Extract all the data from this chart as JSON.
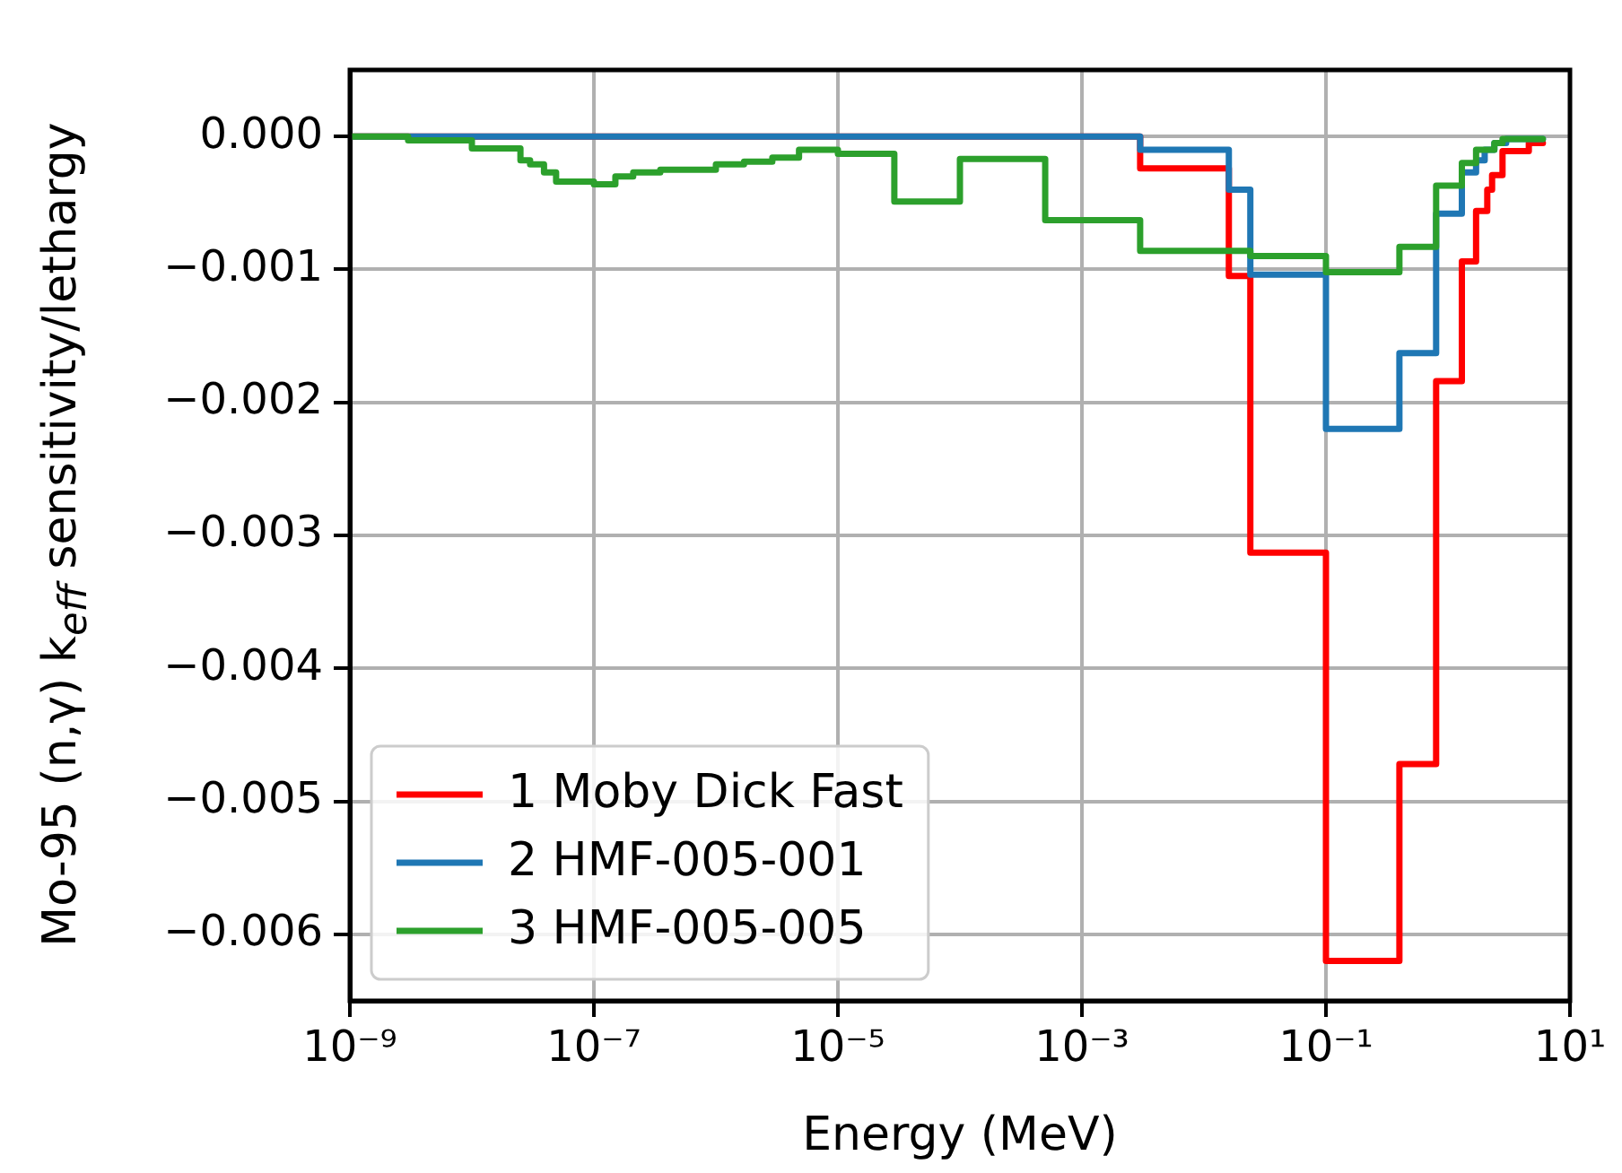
{
  "chart_data": {
    "type": "step",
    "xlabel": "Energy (MeV)",
    "ylabel": "Mo-95 (n,γ) k$_{eff}$ sensitivity/lethargy",
    "log": "x",
    "grid": true,
    "legend": "bottom left",
    "xlim": [
      1e-09,
      10
    ],
    "xticks": [
      {
        "value": 1e-09,
        "label": "10⁻⁹"
      },
      {
        "value": 1e-07,
        "label": "10⁻⁷"
      },
      {
        "value": 1e-05,
        "label": "10⁻⁵"
      },
      {
        "value": 0.001,
        "label": "10⁻³"
      },
      {
        "value": 0.1,
        "label": "10⁻¹"
      },
      {
        "value": 10,
        "label": "10¹"
      }
    ],
    "ylim": [
      -0.0065,
      0.0005
    ],
    "yticks": [
      {
        "value": 0,
        "label": "0.000"
      },
      {
        "value": -0.001,
        "label": "−0.001"
      },
      {
        "value": -0.002,
        "label": "−0.002"
      },
      {
        "value": -0.003,
        "label": "−0.003"
      },
      {
        "value": -0.004,
        "label": "−0.004"
      },
      {
        "value": -0.005,
        "label": "−0.005"
      },
      {
        "value": -0.006,
        "label": "−0.006"
      }
    ],
    "series": [
      {
        "name": "1 Moby Dick Fast",
        "color": "#ff0000",
        "x": [
          1e-09,
          0.003,
          0.016,
          0.024,
          0.1,
          0.4,
          0.8,
          1.3,
          1.7,
          2.1,
          2.3,
          2.8,
          4.6,
          6
        ],
        "values": [
          0,
          -0.00024,
          -0.00105,
          -0.00313,
          -0.0062,
          -0.00472,
          -0.00184,
          -0.00094,
          -0.00056,
          -0.0004,
          -0.00029,
          -0.00011,
          -5e-05,
          -5e-05
        ]
      },
      {
        "name": "2 HMF-005-001",
        "color": "#1f77b4",
        "x": [
          1e-09,
          0.003,
          0.016,
          0.024,
          0.1,
          0.4,
          0.8,
          1.3,
          1.7,
          2.0,
          2.4,
          3.0,
          6
        ],
        "values": [
          0,
          -0.0001,
          -0.0004,
          -0.00104,
          -0.0022,
          -0.00163,
          -0.00058,
          -0.00027,
          -0.00018,
          -0.0001,
          -5e-05,
          -2e-05,
          -2e-05
        ]
      },
      {
        "name": "3 HMF-005-005",
        "color": "#2ca02c",
        "x": [
          1e-09,
          3e-09,
          1e-08,
          2.5e-08,
          3e-08,
          3.9e-08,
          4.9e-08,
          1e-07,
          1.5e-07,
          2.1e-07,
          3.5e-07,
          1e-06,
          1.7e-06,
          2.9e-06,
          4.8e-06,
          1e-05,
          2.9e-05,
          0.0001,
          0.0005,
          0.003,
          0.024,
          0.1,
          0.4,
          0.8,
          1.3,
          1.7,
          2.4,
          2.8,
          6
        ],
        "values": [
          0,
          -3e-05,
          -9e-05,
          -0.00018,
          -0.00021,
          -0.00027,
          -0.00034,
          -0.00036,
          -0.0003,
          -0.00027,
          -0.00025,
          -0.00021,
          -0.00019,
          -0.00016,
          -0.0001,
          -0.00013,
          -0.00049,
          -0.00017,
          -0.00063,
          -0.00086,
          -0.0009,
          -0.00102,
          -0.00083,
          -0.00037,
          -0.0002,
          -0.0001,
          -5e-05,
          -2e-05,
          -2e-05
        ]
      }
    ]
  }
}
